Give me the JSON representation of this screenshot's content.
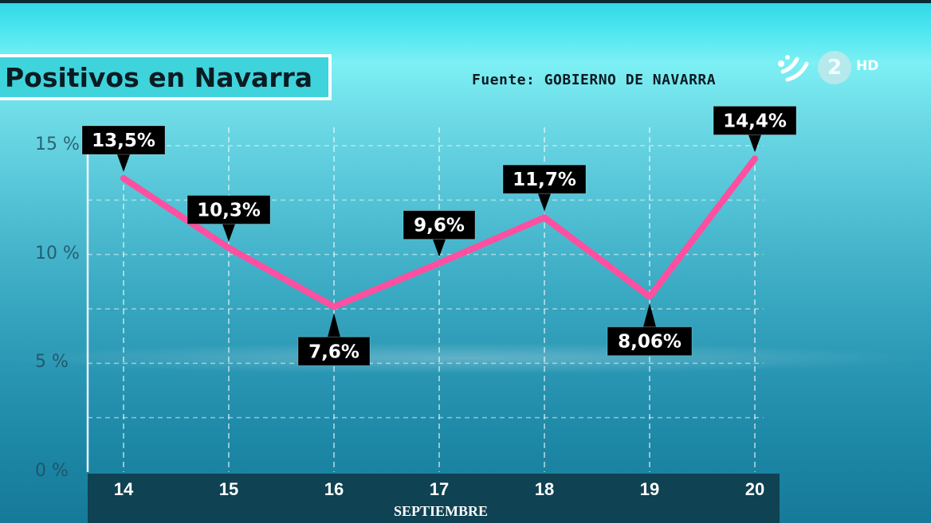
{
  "header": {
    "title": "Positivos en Navarra",
    "source": "Fuente: GOBIERNO DE NAVARRA"
  },
  "logo": {
    "channel_number": "2",
    "quality": "HD",
    "icon": "eitb-logo-icon"
  },
  "colors": {
    "line": "#ff4fa0",
    "label_bg": "#000000",
    "title_bg": "#3fd3dc",
    "axis_bar": "#0f4252"
  },
  "chart_data": {
    "type": "line",
    "title": "Positivos en Navarra",
    "xlabel": "SEPTIEMBRE",
    "ylabel": "",
    "categories": [
      "14",
      "15",
      "16",
      "17",
      "18",
      "19",
      "20"
    ],
    "series": [
      {
        "values": [
          13.5,
          10.3,
          7.6,
          9.6,
          11.7,
          8.06,
          14.4
        ],
        "labels": [
          "13,5%",
          "10,3%",
          "7,6%",
          "9,6%",
          "11,7%",
          "8,06%",
          "14,4%"
        ],
        "label_side": [
          "above",
          "above",
          "below",
          "above",
          "above",
          "below",
          "above"
        ]
      }
    ],
    "yticks": [
      {
        "value": 15,
        "label": "15 %"
      },
      {
        "value": 10,
        "label": "10 %"
      },
      {
        "value": 5,
        "label": "5 %"
      },
      {
        "value": 0,
        "label": "0 %"
      }
    ],
    "ylim": [
      0,
      15
    ],
    "grid": true
  }
}
